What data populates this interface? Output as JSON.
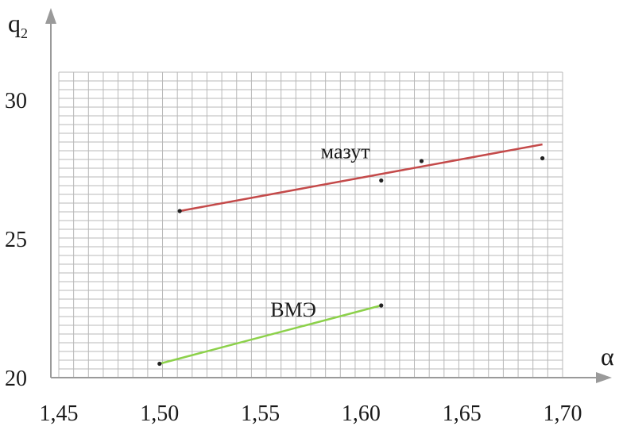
{
  "chart_data": {
    "type": "line",
    "xlabel": "α",
    "ylabel": "q",
    "ylabel_sub": "2",
    "xlim": [
      1.45,
      1.7
    ],
    "ylim": [
      20,
      31
    ],
    "x_ticks": [
      "1,45",
      "1,50",
      "1,55",
      "1,60",
      "1,65",
      "1,70"
    ],
    "x_tick_values": [
      1.45,
      1.5,
      1.55,
      1.6,
      1.65,
      1.7
    ],
    "y_ticks": [
      "20",
      "25",
      "30"
    ],
    "y_tick_values": [
      20,
      25,
      30
    ],
    "grid": true,
    "colors": {
      "grid": "#b8b8b8",
      "axis": "#9a9a9a",
      "mazut": "#c44a4a",
      "vme": "#8cd14a",
      "point": "#222222"
    },
    "series": [
      {
        "name": "мазут",
        "color": "#c44a4a",
        "line": [
          [
            1.51,
            26.0
          ],
          [
            1.69,
            28.4
          ]
        ],
        "points": [
          [
            1.51,
            26.0
          ],
          [
            1.61,
            27.1
          ],
          [
            1.63,
            27.8
          ],
          [
            1.69,
            27.9
          ]
        ],
        "label_at": [
          1.58,
          27.9
        ]
      },
      {
        "name": "ВМЭ",
        "color": "#8cd14a",
        "line": [
          [
            1.5,
            20.5
          ],
          [
            1.61,
            22.6
          ]
        ],
        "points": [
          [
            1.5,
            20.5
          ],
          [
            1.61,
            22.6
          ]
        ],
        "label_at": [
          1.555,
          22.2
        ]
      }
    ]
  }
}
